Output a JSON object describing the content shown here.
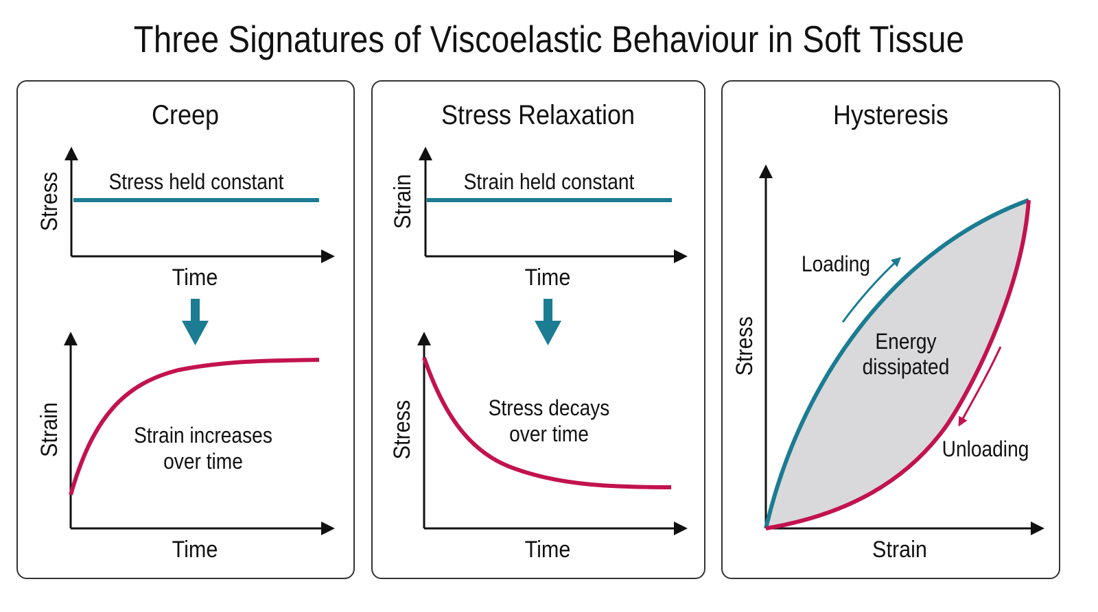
{
  "title": "Three Signatures of Viscoelastic Behaviour in Soft Tissue",
  "colors": {
    "teal": "#1b7c92",
    "crimson": "#c2134f",
    "axis": "#111111",
    "fill": "#d9d9db"
  },
  "panels": {
    "creep": {
      "heading": "Creep",
      "top_ylabel": "Stress",
      "top_xlabel": "Time",
      "top_note": "Stress held constant",
      "bottom_ylabel": "Strain",
      "bottom_xlabel": "Time",
      "bottom_note_1": "Strain increases",
      "bottom_note_2": "over time",
      "arrow_icon": "arrow-down-icon"
    },
    "relax": {
      "heading": "Stress Relaxation",
      "top_ylabel": "Strain",
      "top_xlabel": "Time",
      "top_note": "Strain held constant",
      "bottom_ylabel": "Stress",
      "bottom_xlabel": "Time",
      "bottom_note_1": "Stress decays",
      "bottom_note_2": "over time",
      "arrow_icon": "arrow-down-icon"
    },
    "hyst": {
      "heading": "Hysteresis",
      "ylabel": "Stress",
      "xlabel": "Strain",
      "loading": "Loading",
      "unloading": "Unloading",
      "area_1": "Energy",
      "area_2": "dissipated"
    }
  }
}
